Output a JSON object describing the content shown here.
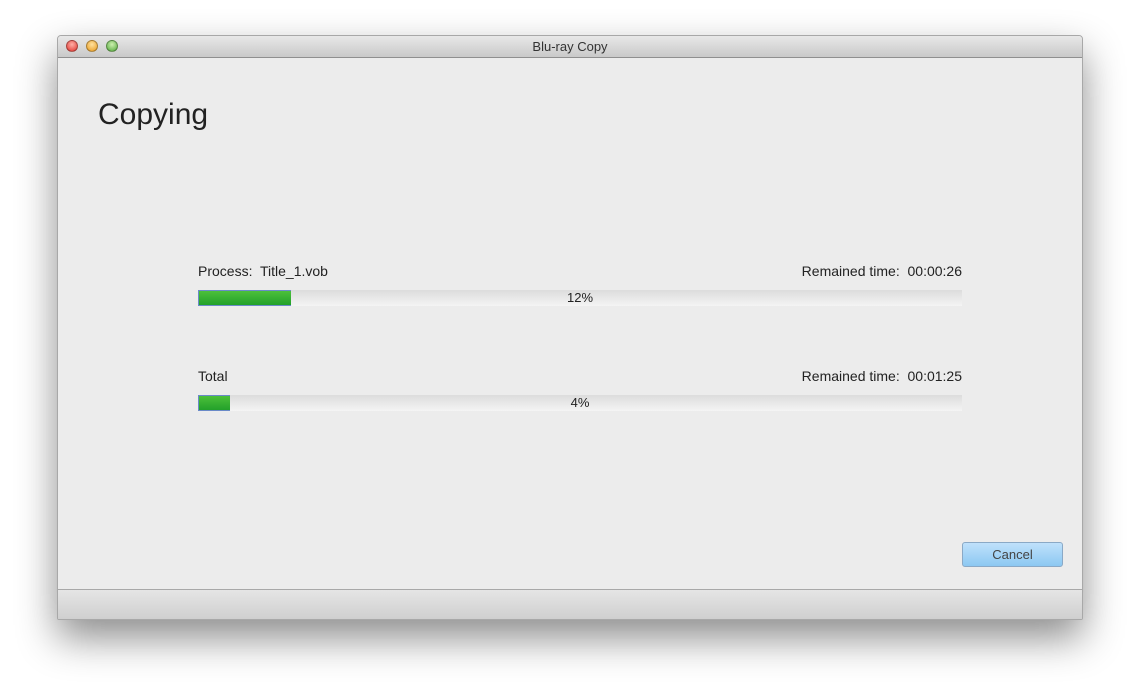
{
  "window": {
    "title": "Blu-ray Copy"
  },
  "heading": "Copying",
  "process": {
    "label": "Process:  Title_1.vob",
    "remained": "Remained time:  00:00:26",
    "percent_text": "12%",
    "progress": 12
  },
  "total": {
    "label": "Total",
    "remained": "Remained time:  00:01:25",
    "percent_text": "4%",
    "progress": 4
  },
  "cancel_label": "Cancel",
  "colors": {
    "progress_fill": "#2aa830",
    "button": "#a6d4f6"
  }
}
